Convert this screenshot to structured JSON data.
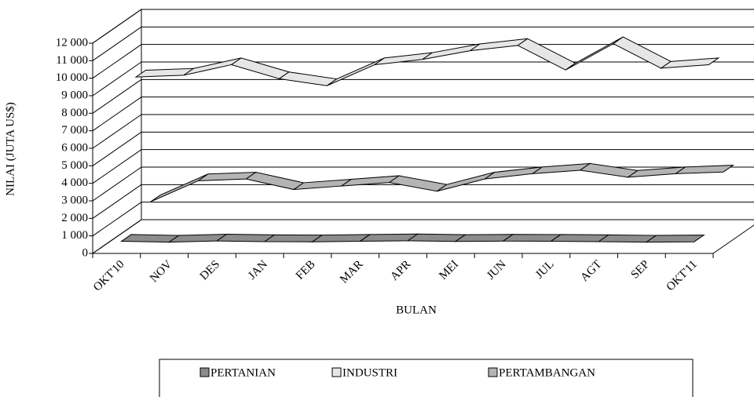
{
  "chart_data": {
    "type": "line3d",
    "x_label": "BULAN",
    "y_label": "NILAI (JUTA US$)",
    "categories": [
      "OKT'10",
      "NOV",
      "DES",
      "JAN",
      "FEB",
      "MAR",
      "APR",
      "MEI",
      "JUN",
      "JUL",
      "AGT",
      "SEP",
      "OKT'11"
    ],
    "series": [
      {
        "name": "PERTANIAN",
        "color": "#8c8c8c",
        "values": [
          500,
          450,
          520,
          480,
          470,
          500,
          530,
          490,
          510,
          500,
          480,
          450,
          470
        ]
      },
      {
        "name": "INDUSTRI",
        "color": "#e6e6e6",
        "values": [
          9300,
          9400,
          10000,
          9200,
          8800,
          10000,
          10300,
          10800,
          11100,
          9700,
          11200,
          9800,
          10000
        ]
      },
      {
        "name": "PERTAMBANGAN",
        "color": "#b4b4b4",
        "values": [
          1600,
          2800,
          2900,
          2300,
          2500,
          2700,
          2200,
          2900,
          3200,
          3400,
          3000,
          3200,
          3300
        ]
      }
    ],
    "ylim": [
      0,
      12000
    ],
    "yticks": [
      0,
      {
        "value": 1000,
        "label": "1 000"
      },
      {
        "value": 2000,
        "label": "2 000"
      },
      {
        "value": 3000,
        "label": "3 000"
      },
      {
        "value": 4000,
        "label": "4 000"
      },
      {
        "value": 5000,
        "label": "5 000"
      },
      {
        "value": 6000,
        "label": "6 000"
      },
      {
        "value": 7000,
        "label": "7 000"
      },
      {
        "value": 8000,
        "label": "8 000"
      },
      {
        "value": 9000,
        "label": "9 000"
      },
      {
        "value": 10000,
        "label": "10 000"
      },
      {
        "value": 11000,
        "label": "11 000"
      },
      {
        "value": 12000,
        "label": "12 000"
      }
    ],
    "grid": true,
    "legend": "bottom"
  }
}
